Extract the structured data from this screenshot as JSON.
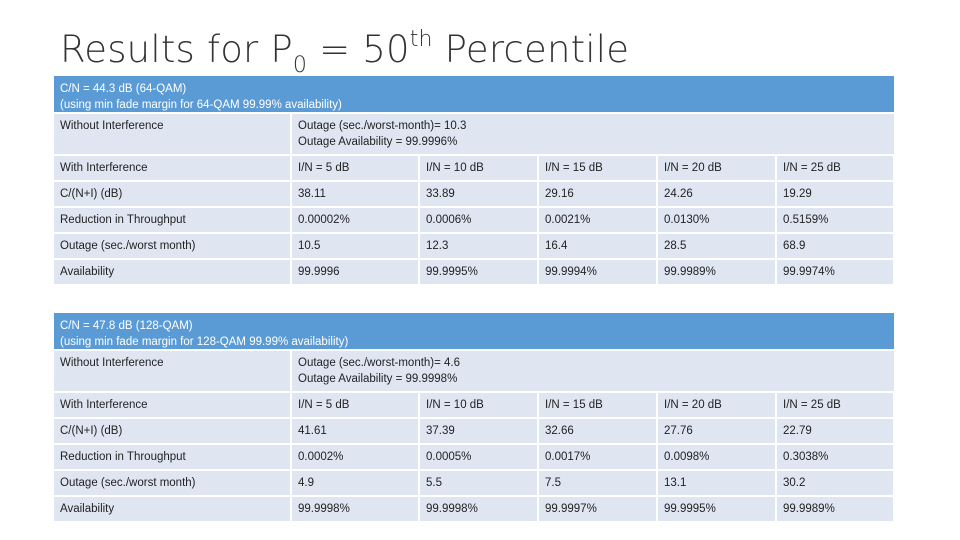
{
  "title": {
    "main": "Results for P",
    "sub": "0",
    "mid": " = 50",
    "sup": "th",
    "end": " Percentile"
  },
  "sections": [
    {
      "header_line1": "C/N = 44.3 dB (64-QAM)",
      "header_line2": "(using min fade margin for 64-QAM 99.99% availability)",
      "without_label": "Without Interference",
      "without_line1": "Outage (sec./worst-month)= 10.3",
      "without_line2": "Outage Availability = 99.9996%",
      "with_label": "With Interference",
      "in_levels": [
        "I/N = 5 dB",
        "I/N = 10 dB",
        "I/N = 15 dB",
        "I/N = 20 dB",
        "I/N = 25 dB"
      ],
      "rows": [
        {
          "label": "C/(N+I) (dB)",
          "values": [
            "38.11",
            "33.89",
            "29.16",
            "24.26",
            "19.29"
          ]
        },
        {
          "label": "Reduction in Throughput",
          "values": [
            "0.00002%",
            "0.0006%",
            "0.0021%",
            "0.0130%",
            "0.5159%"
          ]
        },
        {
          "label": "Outage (sec./worst month)",
          "values": [
            "10.5",
            "12.3",
            "16.4",
            "28.5",
            "68.9"
          ]
        },
        {
          "label": "Availability",
          "values": [
            "99.9996",
            "99.9995%",
            "99.9994%",
            "99.9989%",
            "99.9974%"
          ]
        }
      ]
    },
    {
      "header_line1": "C/N = 47.8 dB (128-QAM)",
      "header_line2": "(using min fade margin for 128-QAM 99.99% availability)",
      "without_label": "Without Interference",
      "without_line1": "Outage (sec./worst-month)= 4.6",
      "without_line2": "Outage Availability = 99.9998%",
      "with_label": "With Interference",
      "in_levels": [
        "I/N = 5 dB",
        "I/N = 10 dB",
        "I/N = 15 dB",
        "I/N = 20 dB",
        "I/N = 25 dB"
      ],
      "rows": [
        {
          "label": "C/(N+I) (dB)",
          "values": [
            "41.61",
            "37.39",
            "32.66",
            "27.76",
            "22.79"
          ]
        },
        {
          "label": "Reduction in Throughput",
          "values": [
            "0.0002%",
            "0.0005%",
            "0.0017%",
            "0.0098%",
            "0.3038%"
          ]
        },
        {
          "label": "Outage (sec./worst month)",
          "values": [
            "4.9",
            "5.5",
            "7.5",
            "13.1",
            "30.2"
          ]
        },
        {
          "label": "Availability",
          "values": [
            "99.9998%",
            "99.9998%",
            "99.9997%",
            "99.9995%",
            "99.9989%"
          ]
        }
      ]
    }
  ]
}
